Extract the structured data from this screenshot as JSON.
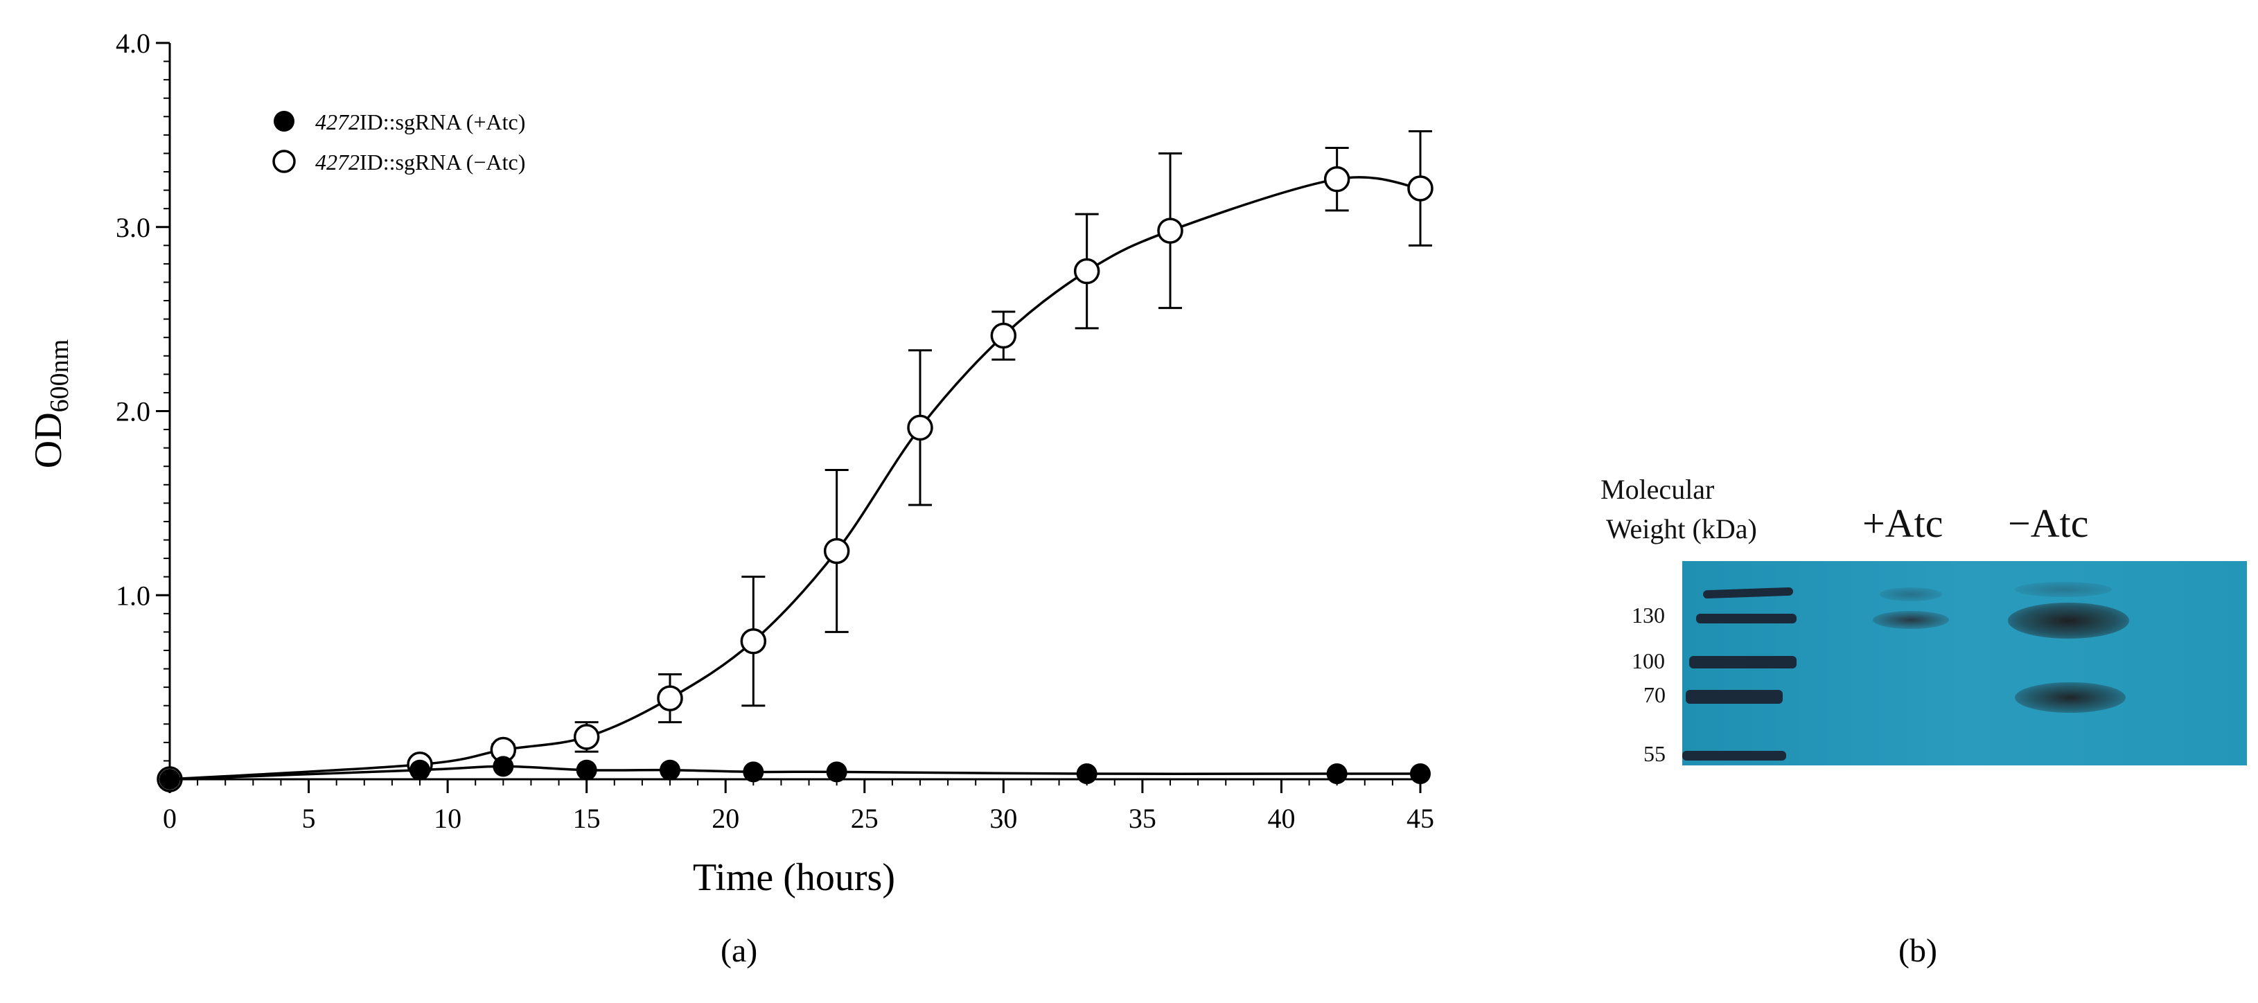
{
  "panel_a": {
    "label": "(a)",
    "chart_data": {
      "type": "line",
      "xlabel": "Time (hours)",
      "ylabel_main": "OD",
      "ylabel_sub": "600nm",
      "xlim": [
        0,
        45
      ],
      "ylim": [
        0,
        4.0
      ],
      "x_ticks": [
        "0",
        "5",
        "10",
        "15",
        "20",
        "25",
        "30",
        "35",
        "40",
        "45"
      ],
      "x_tick_values": [
        0,
        5,
        10,
        15,
        20,
        25,
        30,
        35,
        40,
        45
      ],
      "y_ticks": [
        "1.0",
        "2.0",
        "3.0",
        "4.0"
      ],
      "y_tick_values": [
        1.0,
        2.0,
        3.0,
        4.0
      ],
      "grid": false,
      "legend_position": "top-left",
      "series": [
        {
          "name_italic": "4272",
          "name_rest": "ID::sgRNA (+Atc)",
          "marker": "filled-circle",
          "x": [
            0,
            9,
            12,
            15,
            18,
            21,
            24,
            33,
            42,
            45
          ],
          "y": [
            0.0,
            0.05,
            0.07,
            0.05,
            0.05,
            0.04,
            0.04,
            0.03,
            0.03,
            0.03
          ],
          "err": [
            0,
            0,
            0,
            0,
            0,
            0,
            0,
            0,
            0,
            0
          ]
        },
        {
          "name_italic": "4272",
          "name_rest": "ID::sgRNA (−Atc)",
          "marker": "open-circle",
          "x": [
            0,
            9,
            12,
            15,
            18,
            21,
            24,
            27,
            30,
            33,
            36,
            42,
            45
          ],
          "y": [
            0.0,
            0.08,
            0.16,
            0.23,
            0.44,
            0.75,
            1.24,
            1.91,
            2.41,
            2.76,
            2.98,
            3.26,
            3.21
          ],
          "err": [
            0,
            0,
            0.03,
            0.08,
            0.13,
            0.35,
            0.44,
            0.42,
            0.13,
            0.31,
            0.42,
            0.17,
            0.31
          ]
        }
      ]
    }
  },
  "panel_b": {
    "label": "(b)",
    "header_mw_line1": "Molecular",
    "header_mw_line2": "Weight (kDa)",
    "lane1": "+Atc",
    "lane2": "−Atc",
    "markers": [
      "130",
      "100",
      "70",
      "55"
    ]
  }
}
